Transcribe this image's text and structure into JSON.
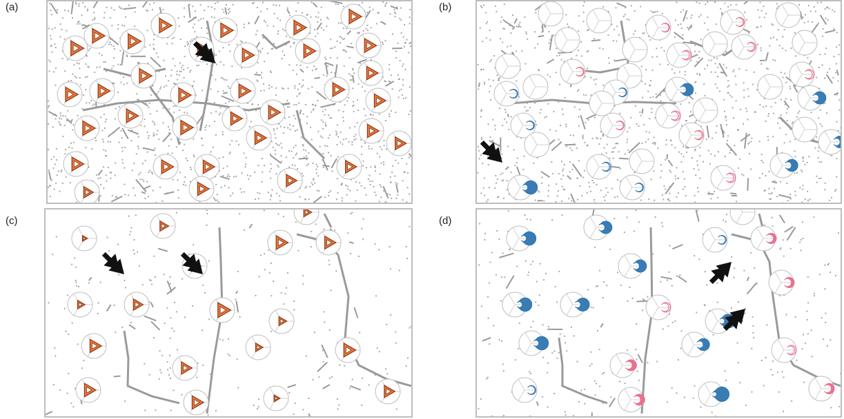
{
  "panels": [
    {
      "id": "a",
      "label": "(a)",
      "glyph": "triangle",
      "arrows": [
        [
          312,
          92
        ]
      ],
      "markers": [
        [
          109,
          70,
          0.95
        ],
        [
          140,
          52,
          0.9
        ],
        [
          192,
          60,
          0.95
        ],
        [
          237,
          37,
          0.9
        ],
        [
          292,
          72,
          0.85
        ],
        [
          326,
          44,
          0.9
        ],
        [
          357,
          80,
          0.85
        ],
        [
          432,
          40,
          0.9
        ],
        [
          446,
          74,
          0.85
        ],
        [
          512,
          24,
          0.9
        ],
        [
          534,
          66,
          0.85
        ],
        [
          537,
          106,
          0.8
        ],
        [
          208,
          110,
          0.9
        ],
        [
          101,
          137,
          0.9
        ],
        [
          148,
          132,
          0.85
        ],
        [
          265,
          138,
          0.9
        ],
        [
          352,
          132,
          0.85
        ],
        [
          488,
          130,
          0.85
        ],
        [
          548,
          146,
          0.8
        ],
        [
          189,
          168,
          0.85
        ],
        [
          268,
          185,
          0.9
        ],
        [
          340,
          172,
          0.8
        ],
        [
          395,
          163,
          0.85
        ],
        [
          126,
          186,
          0.9
        ],
        [
          375,
          200,
          0.8
        ],
        [
          538,
          190,
          0.8
        ],
        [
          578,
          208,
          0.75
        ],
        [
          110,
          238,
          0.85
        ],
        [
          240,
          242,
          0.85
        ],
        [
          300,
          242,
          0.8
        ],
        [
          506,
          242,
          0.75
        ],
        [
          292,
          274,
          0.8
        ],
        [
          420,
          262,
          0.7
        ],
        [
          126,
          279,
          0.6
        ]
      ]
    },
    {
      "id": "b",
      "label": "(b)",
      "glyph": "pie",
      "arrows": [
        [
          728,
          236
        ]
      ],
      "markers": [
        [
          798,
          20,
          "gray",
          0
        ],
        [
          868,
          30,
          "gray",
          0
        ],
        [
          954,
          40,
          "pink",
          0.1
        ],
        [
          1062,
          32,
          "pink",
          0.1
        ],
        [
          1142,
          22,
          "gray",
          0
        ],
        [
          1036,
          64,
          "gray",
          0
        ],
        [
          822,
          58,
          "gray",
          0
        ],
        [
          920,
          72,
          "gray",
          0
        ],
        [
          1078,
          68,
          "pink",
          0.15
        ],
        [
          1166,
          62,
          "gray",
          0
        ],
        [
          984,
          80,
          "pink",
          0.2
        ],
        [
          736,
          96,
          "gray",
          0
        ],
        [
          830,
          104,
          "pink",
          0.1
        ],
        [
          912,
          110,
          "gray",
          0
        ],
        [
          1162,
          108,
          "pink",
          0.2
        ],
        [
          776,
          126,
          "gray",
          0
        ],
        [
          734,
          136,
          "blue",
          0.1
        ],
        [
          892,
          134,
          "blue",
          0.1
        ],
        [
          982,
          130,
          "blue",
          0.6
        ],
        [
          1116,
          126,
          "gray",
          0
        ],
        [
          1174,
          142,
          "blue",
          0.6
        ],
        [
          872,
          150,
          "gray",
          0
        ],
        [
          968,
          168,
          "pink",
          0.2
        ],
        [
          1022,
          160,
          "gray",
          0
        ],
        [
          758,
          182,
          "blue",
          0.1
        ],
        [
          888,
          182,
          "pink",
          0.1
        ],
        [
          1002,
          196,
          "pink",
          0.15
        ],
        [
          1166,
          188,
          "gray",
          0
        ],
        [
          1204,
          206,
          "blue",
          0.5
        ],
        [
          778,
          210,
          "gray",
          0
        ],
        [
          930,
          234,
          "gray",
          0
        ],
        [
          868,
          242,
          "blue",
          0.15
        ],
        [
          1134,
          240,
          "blue",
          0.55
        ],
        [
          1048,
          258,
          "pink",
          0.2
        ],
        [
          916,
          272,
          "blue",
          0.1
        ],
        [
          754,
          272,
          "blue",
          0.75
        ]
      ]
    },
    {
      "id": "c",
      "label": "(c)",
      "glyph": "triangle",
      "arrows": [
        [
          180,
          398
        ],
        [
          294,
          398
        ]
      ],
      "markers": [
        [
          122,
          346,
          0.1
        ],
        [
          236,
          328,
          0.5
        ],
        [
          406,
          352,
          0.85
        ],
        [
          476,
          352,
          0.75
        ],
        [
          282,
          386,
          0.6
        ],
        [
          116,
          442,
          0.35
        ],
        [
          198,
          442,
          0.6
        ],
        [
          322,
          450,
          0.95
        ],
        [
          408,
          466,
          0.4
        ],
        [
          136,
          502,
          0.8
        ],
        [
          374,
          504,
          0.35
        ],
        [
          504,
          508,
          0.85
        ],
        [
          268,
          534,
          0.7
        ],
        [
          128,
          566,
          0.8
        ],
        [
          284,
          584,
          0.8
        ],
        [
          400,
          578,
          0.2
        ],
        [
          562,
          568,
          0.7
        ],
        [
          444,
          308,
          0.4
        ]
      ]
    },
    {
      "id": "d",
      "label": "(d)",
      "glyph": "pie",
      "arrows": [
        [
          1060,
          380
        ],
        [
          1080,
          448
        ]
      ],
      "markers": [
        [
          864,
          330,
          "blue",
          0.6
        ],
        [
          752,
          346,
          "blue",
          0.75
        ],
        [
          1036,
          348,
          "blue",
          0.1
        ],
        [
          1106,
          346,
          "pink",
          0.3
        ],
        [
          914,
          386,
          "blue",
          0.6
        ],
        [
          1132,
          410,
          "pink",
          0.3
        ],
        [
          746,
          442,
          "blue",
          0.75
        ],
        [
          830,
          442,
          "blue",
          0.7
        ],
        [
          954,
          446,
          "pink",
          0.2
        ],
        [
          1040,
          466,
          "blue",
          0.8
        ],
        [
          770,
          498,
          "blue",
          0.75
        ],
        [
          1006,
          500,
          "blue",
          0.55
        ],
        [
          1136,
          508,
          "pink",
          0.2
        ],
        [
          902,
          530,
          "pink",
          0.4
        ],
        [
          760,
          566,
          "blue",
          0.1
        ],
        [
          914,
          580,
          "pink",
          0.4
        ],
        [
          1030,
          572,
          "blue",
          0.9
        ],
        [
          1190,
          564,
          "pink",
          0.3
        ],
        [
          1076,
          308,
          "gray",
          0
        ]
      ]
    }
  ],
  "colors": {
    "border": "#bdbdbd",
    "noise": "#8a8a8a",
    "road": "#9a9a9a",
    "triangle_fill": "#e8773a",
    "triangle_stroke": "#8a3a1a",
    "circle": "#bdbdbd",
    "blue": "#2f75b0",
    "pink": "#e96b8a",
    "arrow": "#111111"
  }
}
